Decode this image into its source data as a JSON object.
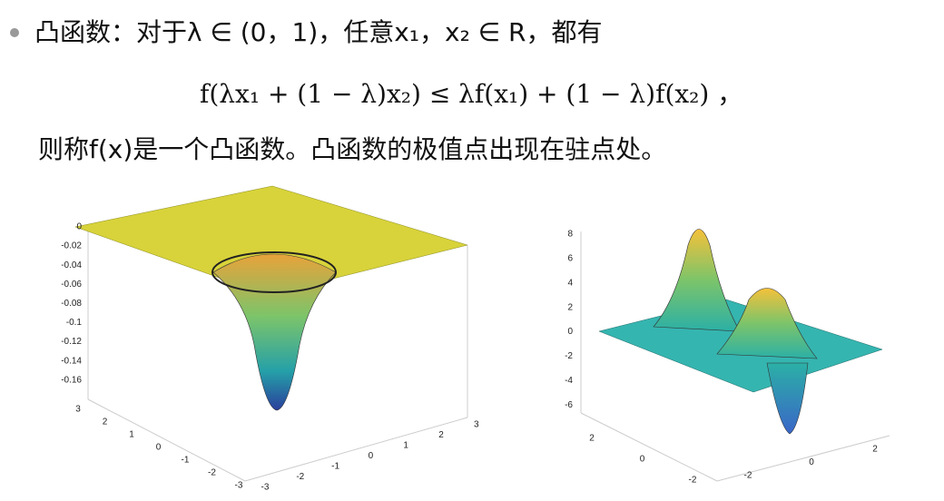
{
  "bullet": "凸函数：对于λ ∈ (0，1)，任意x₁，x₂ ∈ R，都有",
  "formula": "f(λx₁ + (1 − λ)x₂) ≤ λf(x₁) + (1 − λ)f(x₂) ，",
  "conclusion": "则称f(x)是一个凸函数。凸函数的极值点出现在驻点处。",
  "figures": [
    {
      "z_ticks": [
        "0",
        "-0.02",
        "-0.04",
        "-0.06",
        "-0.08",
        "-0.1",
        "-0.12",
        "-0.14",
        "-0.16"
      ],
      "y_ticks": [
        "3",
        "2",
        "1",
        "0",
        "-1",
        "-2",
        "-3"
      ],
      "x_ticks": [
        "-3",
        "-2",
        "-1",
        "0",
        "1",
        "2",
        "3"
      ]
    },
    {
      "z_ticks": [
        "8",
        "6",
        "4",
        "2",
        "0",
        "-2",
        "-4",
        "-6"
      ],
      "y_ticks": [
        "2",
        "0",
        "-2"
      ],
      "x_ticks": [
        "-2",
        "0",
        "2"
      ]
    }
  ]
}
